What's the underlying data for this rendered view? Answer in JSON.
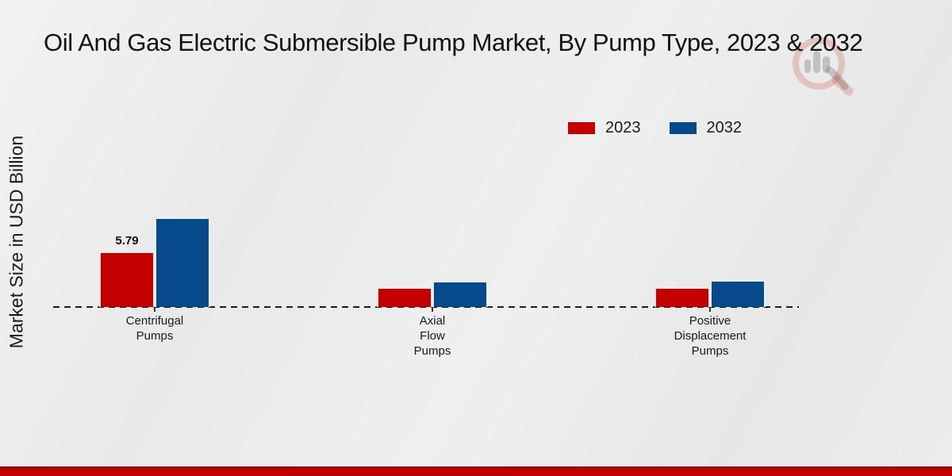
{
  "header": {
    "title": "Oil And Gas Electric Submersible Pump Market, By Pump Type, 2023 & 2032"
  },
  "watermark": {
    "icon": "magnifier-bar-chart-logo"
  },
  "chart_data": {
    "type": "bar",
    "title": "Oil And Gas Electric Submersible Pump Market, By Pump Type, 2023 & 2032",
    "xlabel": "",
    "ylabel": "Market Size in USD Billion",
    "categories": [
      "Centrifugal Pumps",
      "Axial Flow Pumps",
      "Positive Displacement Pumps"
    ],
    "category_label_lines": [
      [
        "Centrifugal",
        "Pumps"
      ],
      [
        "Axial",
        "Flow",
        "Pumps"
      ],
      [
        "Positive",
        "Displacement",
        "Pumps"
      ]
    ],
    "series": [
      {
        "name": "2023",
        "color": "#c50000",
        "values": [
          5.79,
          2.07,
          2.03
        ]
      },
      {
        "name": "2032",
        "color": "#064a8b",
        "values": [
          9.35,
          2.69,
          2.81
        ]
      }
    ],
    "value_labels": [
      {
        "category_index": 0,
        "series_index": 0,
        "text": "5.79"
      }
    ],
    "ylim": [
      0,
      10.5
    ],
    "grid": false,
    "legend_position": "top-right",
    "baseline_style": "dashed"
  },
  "footer": {
    "accent_color": "#bd0000"
  }
}
